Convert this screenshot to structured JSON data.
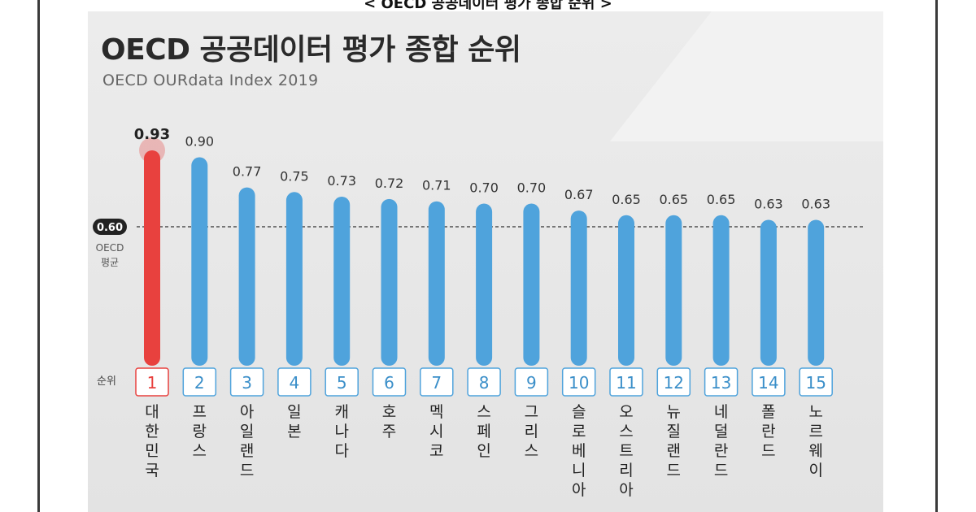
{
  "header": {
    "caption": "< OECD 공공데이터 평가 종합 순위 >"
  },
  "colors": {
    "highlight": "#e8413e",
    "bar": "#4fa3dc",
    "avg_line": "#333333",
    "badge": "#222222"
  },
  "chart_data": {
    "type": "bar",
    "title": "OECD 공공데이터 평가 종합 순위",
    "subtitle": "OECD OURdata Index 2019",
    "categories": [
      "대한민국",
      "프랑스",
      "아일랜드",
      "일본",
      "캐나다",
      "호주",
      "멕시코",
      "스페인",
      "그리스",
      "슬로베니아",
      "오스트리아",
      "뉴질랜드",
      "네덜란드",
      "폴란드",
      "노르웨이"
    ],
    "ranks": [
      "1",
      "2",
      "3",
      "4",
      "5",
      "6",
      "7",
      "8",
      "9",
      "10",
      "11",
      "12",
      "13",
      "14",
      "15"
    ],
    "values": [
      0.93,
      0.9,
      0.77,
      0.75,
      0.73,
      0.72,
      0.71,
      0.7,
      0.7,
      0.67,
      0.65,
      0.65,
      0.65,
      0.63,
      0.63
    ],
    "value_labels": [
      "0.93",
      "0.90",
      "0.77",
      "0.75",
      "0.73",
      "0.72",
      "0.71",
      "0.70",
      "0.70",
      "0.67",
      "0.65",
      "0.65",
      "0.65",
      "0.63",
      "0.63"
    ],
    "highlight_index": 0,
    "rank_label": "순위",
    "average": {
      "value": 0.6,
      "label": "0.60",
      "name_line1": "OECD",
      "name_line2": "평균"
    },
    "ylim": [
      0,
      0.93
    ],
    "grid": false
  }
}
